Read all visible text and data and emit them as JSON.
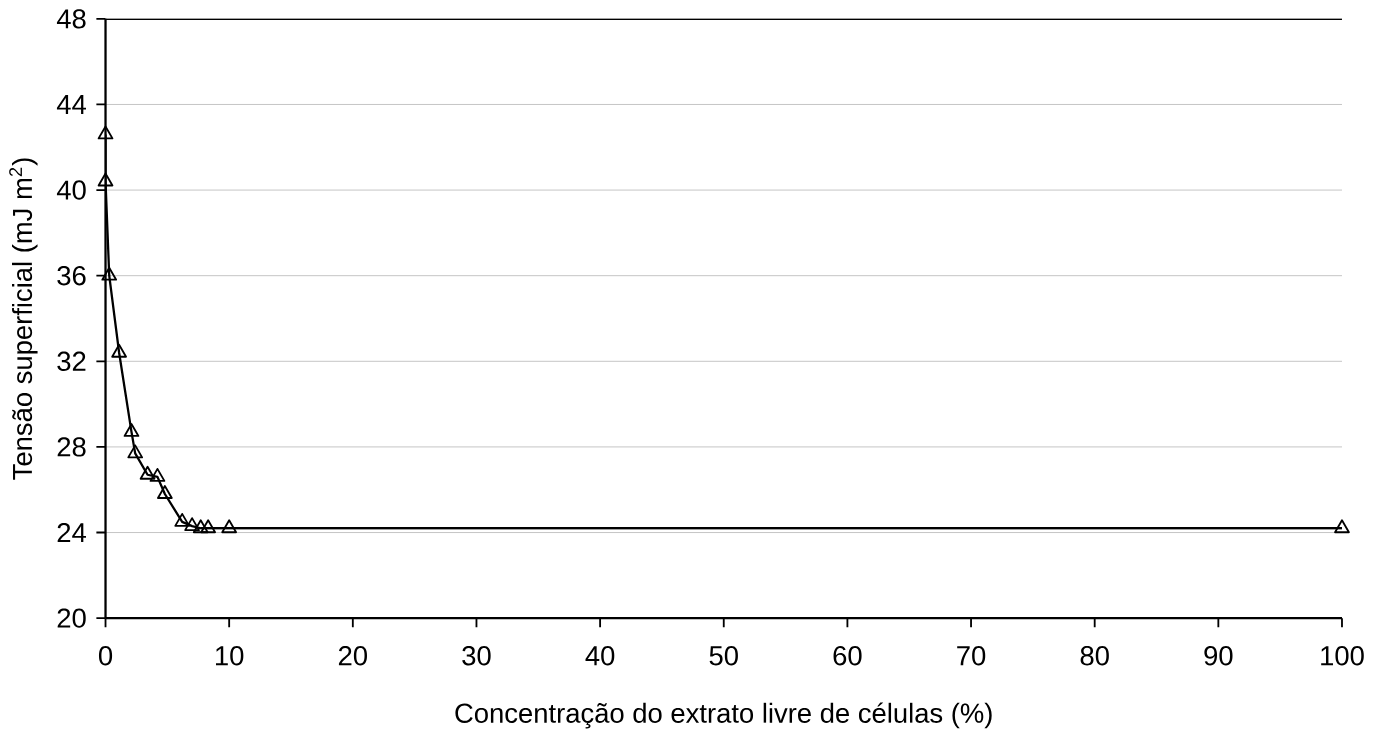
{
  "chart_data": {
    "type": "line",
    "xlabel": "Concentração do extrato livre de células (%)",
    "ylabel": "Tensão superficial (mJ m$^{2}$)",
    "x": [
      0,
      0,
      0.3,
      1.1,
      2.1,
      2.4,
      3.4,
      4.2,
      4.8,
      6.2,
      7,
      7.7,
      8.3,
      10,
      100
    ],
    "values": [
      42.6,
      40.4,
      36.0,
      32.4,
      28.7,
      27.7,
      26.7,
      26.6,
      25.8,
      24.5,
      24.3,
      24.2,
      24.2,
      24.2,
      24.2
    ],
    "color": "#000000",
    "marker": "triangle",
    "xlim": [
      0,
      100
    ],
    "xticks": [
      0,
      10,
      20,
      30,
      40,
      50,
      60,
      70,
      80,
      90,
      100
    ],
    "ylim": [
      20,
      48
    ],
    "yticks": [
      20,
      24,
      28,
      32,
      36,
      40,
      44,
      48
    ],
    "grid": "y"
  }
}
